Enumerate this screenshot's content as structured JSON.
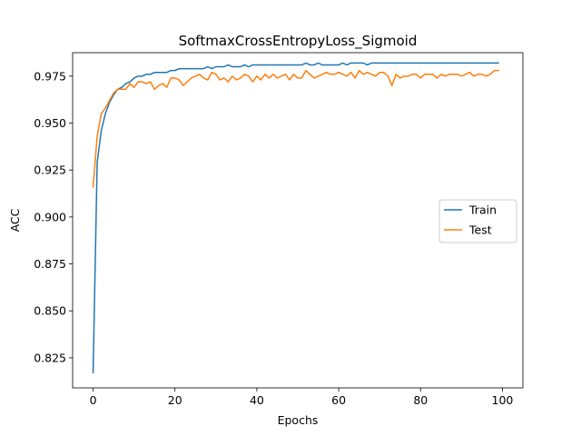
{
  "chart_data": {
    "type": "line",
    "title": "SoftmaxCrossEntropyLoss_Sigmoid",
    "xlabel": "Epochs",
    "ylabel": "ACC",
    "xlim": [
      -5,
      105
    ],
    "ylim": [
      0.809,
      0.9875
    ],
    "xticks": [
      0,
      20,
      40,
      60,
      80,
      100
    ],
    "yticks": [
      0.825,
      0.85,
      0.875,
      0.9,
      0.925,
      0.95,
      0.975
    ],
    "grid": false,
    "legend_position": "center-right",
    "series": [
      {
        "name": "Train",
        "color": "#1f77b4",
        "x": [
          0,
          1,
          2,
          3,
          4,
          5,
          6,
          7,
          8,
          9,
          10,
          11,
          12,
          13,
          14,
          15,
          16,
          17,
          18,
          19,
          20,
          21,
          22,
          23,
          24,
          25,
          26,
          27,
          28,
          29,
          30,
          31,
          32,
          33,
          34,
          35,
          36,
          37,
          38,
          39,
          40,
          41,
          42,
          43,
          44,
          45,
          46,
          47,
          48,
          49,
          50,
          51,
          52,
          53,
          54,
          55,
          56,
          57,
          58,
          59,
          60,
          61,
          62,
          63,
          64,
          65,
          66,
          67,
          68,
          69,
          70,
          71,
          72,
          73,
          74,
          75,
          76,
          77,
          78,
          79,
          80,
          81,
          82,
          83,
          84,
          85,
          86,
          87,
          88,
          89,
          90,
          91,
          92,
          93,
          94,
          95,
          96,
          97,
          98,
          99
        ],
        "values": [
          0.817,
          0.929,
          0.946,
          0.955,
          0.961,
          0.965,
          0.968,
          0.969,
          0.971,
          0.972,
          0.974,
          0.975,
          0.975,
          0.976,
          0.976,
          0.977,
          0.977,
          0.977,
          0.977,
          0.978,
          0.978,
          0.979,
          0.979,
          0.979,
          0.979,
          0.979,
          0.979,
          0.979,
          0.98,
          0.979,
          0.98,
          0.98,
          0.98,
          0.981,
          0.98,
          0.98,
          0.98,
          0.981,
          0.98,
          0.981,
          0.981,
          0.981,
          0.981,
          0.981,
          0.981,
          0.981,
          0.981,
          0.981,
          0.981,
          0.981,
          0.981,
          0.981,
          0.982,
          0.981,
          0.981,
          0.982,
          0.981,
          0.981,
          0.981,
          0.981,
          0.981,
          0.982,
          0.981,
          0.982,
          0.982,
          0.982,
          0.982,
          0.981,
          0.982,
          0.982,
          0.982,
          0.982,
          0.982,
          0.982,
          0.982,
          0.982,
          0.982,
          0.982,
          0.982,
          0.982,
          0.982,
          0.982,
          0.982,
          0.982,
          0.982,
          0.982,
          0.982,
          0.982,
          0.982,
          0.982,
          0.982,
          0.982,
          0.982,
          0.982,
          0.982,
          0.982,
          0.982,
          0.982,
          0.982,
          0.982
        ]
      },
      {
        "name": "Test",
        "color": "#ff7f0e",
        "x": [
          0,
          1,
          2,
          3,
          4,
          5,
          6,
          7,
          8,
          9,
          10,
          11,
          12,
          13,
          14,
          15,
          16,
          17,
          18,
          19,
          20,
          21,
          22,
          23,
          24,
          25,
          26,
          27,
          28,
          29,
          30,
          31,
          32,
          33,
          34,
          35,
          36,
          37,
          38,
          39,
          40,
          41,
          42,
          43,
          44,
          45,
          46,
          47,
          48,
          49,
          50,
          51,
          52,
          53,
          54,
          55,
          56,
          57,
          58,
          59,
          60,
          61,
          62,
          63,
          64,
          65,
          66,
          67,
          68,
          69,
          70,
          71,
          72,
          73,
          74,
          75,
          76,
          77,
          78,
          79,
          80,
          81,
          82,
          83,
          84,
          85,
          86,
          87,
          88,
          89,
          90,
          91,
          92,
          93,
          94,
          95,
          96,
          97,
          98,
          99
        ],
        "values": [
          0.916,
          0.943,
          0.955,
          0.958,
          0.962,
          0.966,
          0.968,
          0.968,
          0.968,
          0.971,
          0.969,
          0.972,
          0.972,
          0.971,
          0.972,
          0.968,
          0.97,
          0.971,
          0.969,
          0.974,
          0.974,
          0.973,
          0.97,
          0.972,
          0.974,
          0.975,
          0.976,
          0.974,
          0.973,
          0.977,
          0.976,
          0.973,
          0.974,
          0.972,
          0.975,
          0.973,
          0.974,
          0.976,
          0.975,
          0.972,
          0.975,
          0.973,
          0.976,
          0.974,
          0.976,
          0.974,
          0.975,
          0.976,
          0.973,
          0.976,
          0.974,
          0.974,
          0.978,
          0.976,
          0.974,
          0.975,
          0.976,
          0.977,
          0.976,
          0.976,
          0.977,
          0.976,
          0.975,
          0.977,
          0.974,
          0.978,
          0.976,
          0.977,
          0.976,
          0.975,
          0.977,
          0.977,
          0.975,
          0.97,
          0.976,
          0.974,
          0.975,
          0.975,
          0.976,
          0.976,
          0.974,
          0.976,
          0.976,
          0.976,
          0.974,
          0.976,
          0.975,
          0.976,
          0.976,
          0.976,
          0.975,
          0.976,
          0.977,
          0.975,
          0.976,
          0.976,
          0.975,
          0.976,
          0.978,
          0.978
        ]
      }
    ]
  }
}
